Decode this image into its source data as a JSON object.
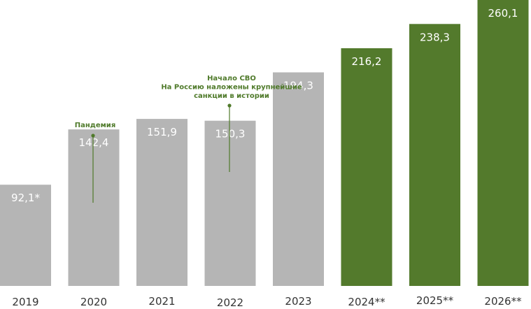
{
  "chart_data": {
    "type": "bar",
    "title": "",
    "xlabel": "",
    "ylabel": "",
    "ylim": [
      0,
      260.1
    ],
    "grid": false,
    "categories": [
      "2019",
      "2020",
      "2021",
      "2022",
      "2023",
      "2024**",
      "2025**",
      "2026**"
    ],
    "values": [
      92.1,
      142.4,
      151.9,
      150.3,
      194.3,
      216.2,
      238.3,
      260.1
    ],
    "value_labels": [
      "92,1*",
      "142,4",
      "151,9",
      "150,3",
      "194,3",
      "216,2",
      "238,3",
      "260,1"
    ],
    "bar_kinds": [
      "actual",
      "actual",
      "actual",
      "actual",
      "actual",
      "forecast",
      "forecast",
      "forecast"
    ],
    "colors": {
      "actual": "#b5b5b5",
      "forecast": "#537a2c",
      "annotation": "#4f7a2a"
    },
    "annotations": [
      {
        "category_index": 1,
        "lines": [
          "Пандемия"
        ]
      },
      {
        "category_index": 3,
        "lines": [
          "Начало СВО",
          "На Россию наложены крупнейшие",
          "санкции в истории"
        ]
      }
    ]
  }
}
